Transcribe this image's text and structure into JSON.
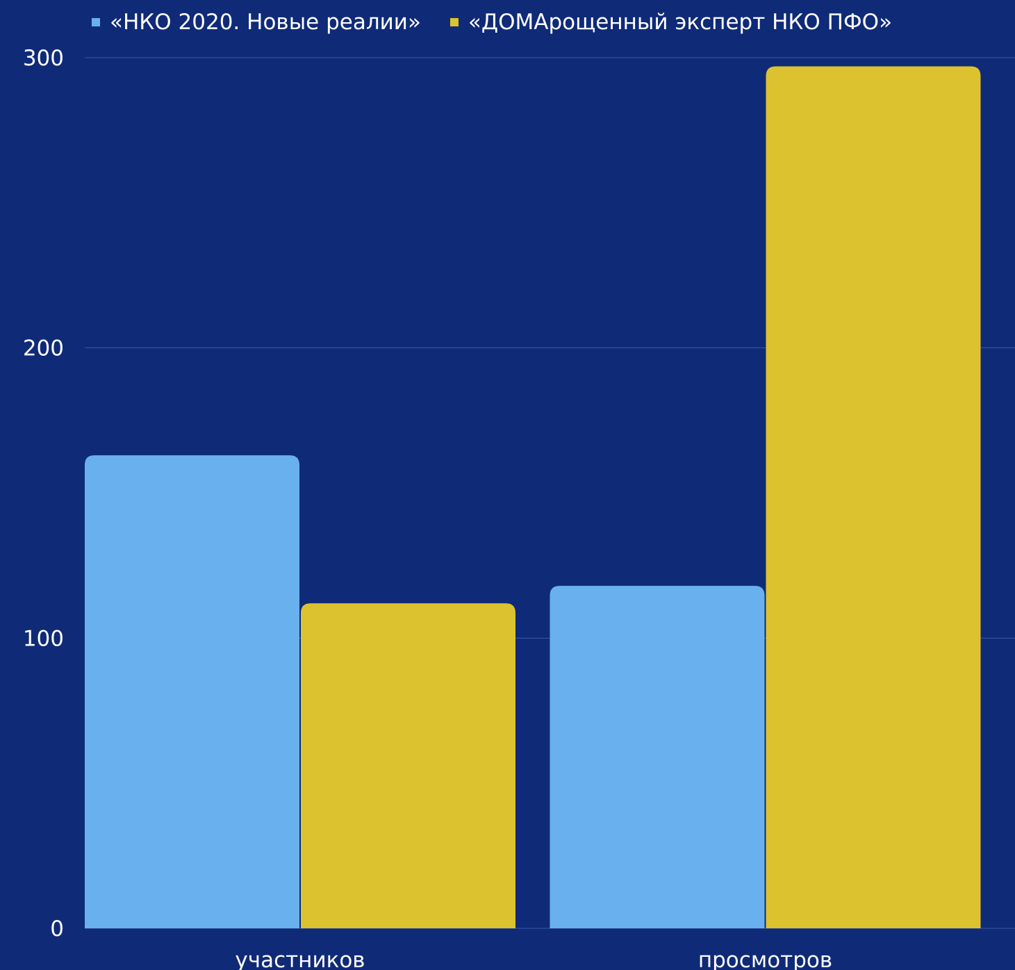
{
  "colors": {
    "background": "#0f2a77",
    "series1": "#69b1ee",
    "series2": "#dcc22f",
    "grid": "#3a5aa5",
    "text": "#ffffff"
  },
  "chart_data": {
    "type": "bar",
    "title": "",
    "xlabel": "",
    "ylabel": "",
    "categories": [
      "участников",
      "просмотров"
    ],
    "series": [
      {
        "name": "«НКО 2020. Новые реалии»",
        "values": [
          163,
          118
        ]
      },
      {
        "name": "«ДОМАрощенный эксперт НКО ПФО»",
        "values": [
          112,
          297
        ]
      }
    ],
    "ylim": [
      0,
      300
    ],
    "yticks": [
      "0",
      "100",
      "200",
      "300"
    ],
    "grid": true,
    "legend": "top"
  }
}
